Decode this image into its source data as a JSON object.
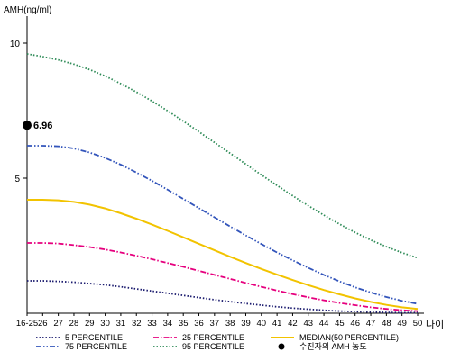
{
  "chart_data": {
    "type": "line",
    "ylabel": "AMH(ng/ml)",
    "xlabel": "나이",
    "ylim": [
      0,
      11
    ],
    "yticks": [
      5,
      10
    ],
    "grid": false,
    "legend_position": "bottom",
    "x": [
      "16-25",
      "26",
      "27",
      "28",
      "29",
      "30",
      "31",
      "32",
      "33",
      "34",
      "35",
      "36",
      "37",
      "38",
      "39",
      "40",
      "41",
      "42",
      "43",
      "44",
      "45",
      "46",
      "47",
      "48",
      "49",
      "50"
    ],
    "series": [
      {
        "name": "5 PERCENTILE",
        "color": "#1a1a6e",
        "dash": "dot",
        "values": [
          1.2,
          1.2,
          1.18,
          1.15,
          1.1,
          1.05,
          0.98,
          0.9,
          0.82,
          0.74,
          0.66,
          0.58,
          0.5,
          0.43,
          0.36,
          0.3,
          0.24,
          0.19,
          0.15,
          0.11,
          0.08,
          0.06,
          0.04,
          0.03,
          0.02,
          0.02
        ]
      },
      {
        "name": "25 PERCENTILE",
        "color": "#e6007e",
        "dash": "dashdot",
        "values": [
          2.6,
          2.6,
          2.58,
          2.52,
          2.45,
          2.36,
          2.25,
          2.13,
          2.0,
          1.86,
          1.72,
          1.57,
          1.42,
          1.27,
          1.12,
          0.98,
          0.84,
          0.71,
          0.59,
          0.48,
          0.38,
          0.3,
          0.22,
          0.16,
          0.11,
          0.08
        ]
      },
      {
        "name": "MEDIAN(50 PERCENTILE)",
        "color": "#f2c300",
        "dash": "solid",
        "values": [
          4.2,
          4.2,
          4.18,
          4.12,
          4.02,
          3.88,
          3.7,
          3.5,
          3.28,
          3.05,
          2.81,
          2.57,
          2.33,
          2.09,
          1.86,
          1.64,
          1.43,
          1.23,
          1.04,
          0.86,
          0.7,
          0.55,
          0.42,
          0.31,
          0.22,
          0.16
        ]
      },
      {
        "name": "75 PERCENTILE",
        "color": "#3355bb",
        "dash": "dashdotdot",
        "values": [
          6.2,
          6.2,
          6.18,
          6.1,
          5.95,
          5.75,
          5.5,
          5.21,
          4.9,
          4.57,
          4.23,
          3.89,
          3.55,
          3.21,
          2.88,
          2.56,
          2.25,
          1.96,
          1.68,
          1.42,
          1.18,
          0.96,
          0.77,
          0.6,
          0.46,
          0.35
        ]
      },
      {
        "name": "95 PERCENTILE",
        "color": "#2e8b57",
        "dash": "dot",
        "values": [
          9.6,
          9.5,
          9.38,
          9.22,
          9.02,
          8.78,
          8.5,
          8.19,
          7.85,
          7.49,
          7.11,
          6.72,
          6.32,
          5.92,
          5.52,
          5.12,
          4.73,
          4.35,
          3.98,
          3.63,
          3.3,
          2.99,
          2.71,
          2.46,
          2.24,
          2.05
        ]
      }
    ],
    "patient_legend_label": "수진자의 AMH 농도",
    "patient_point": {
      "x": "16-25",
      "y": 6.96,
      "label": "6.96"
    }
  }
}
